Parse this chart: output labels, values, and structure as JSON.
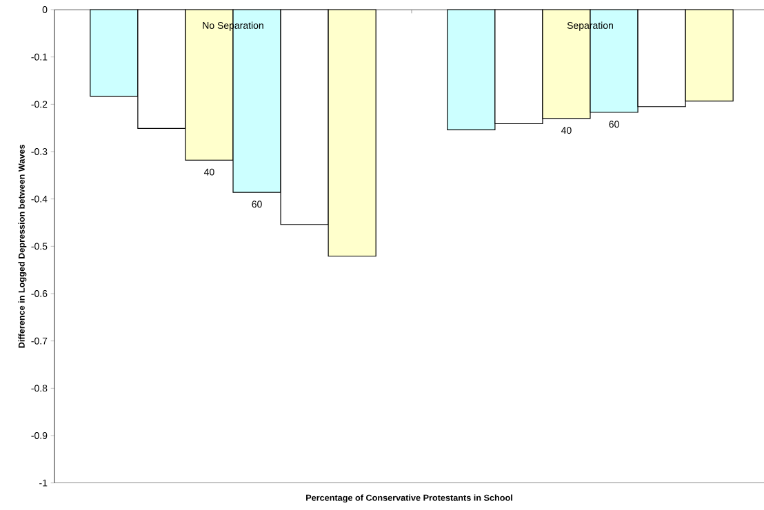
{
  "chart_data": {
    "type": "bar",
    "xlabel": "Percentage of Conservative Protestants in School",
    "ylabel": "Difference in Logged Depression between Waves",
    "categories": [
      "No Separation",
      "Separation"
    ],
    "series": [
      {
        "color": "#ccffff",
        "values": [
          -0.183,
          -0.254
        ]
      },
      {
        "color": "#ffffff",
        "values": [
          -0.251,
          -0.241
        ]
      },
      {
        "name": "40",
        "color": "#ffffcc",
        "values": [
          -0.318,
          -0.23
        ]
      },
      {
        "name": "60",
        "color": "#ccffff",
        "values": [
          -0.386,
          -0.217
        ]
      },
      {
        "color": "#ffffff",
        "values": [
          -0.454,
          -0.205
        ]
      },
      {
        "color": "#ffffcc",
        "values": [
          -0.521,
          -0.193
        ]
      }
    ],
    "ylim": [
      -1,
      0
    ],
    "yticks": [
      0,
      -0.1,
      -0.2,
      -0.3,
      -0.4,
      -0.5,
      -0.6,
      -0.7,
      -0.8,
      -0.9,
      -1
    ],
    "legend": false
  }
}
